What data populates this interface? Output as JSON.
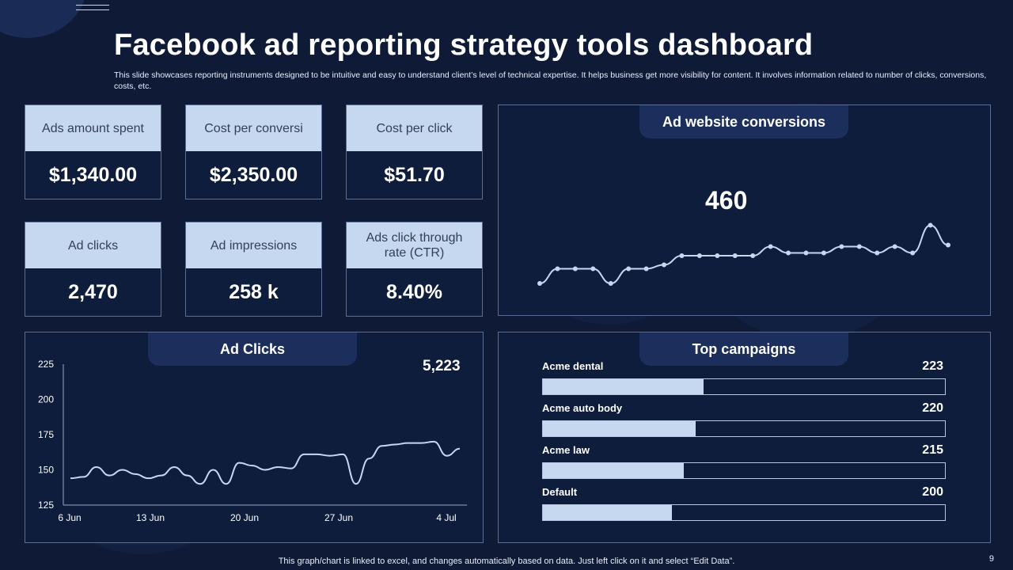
{
  "header": {
    "title": "Facebook ad reporting strategy tools dashboard",
    "subtitle": "This slide showcases reporting instruments designed to be intuitive and easy to understand client’s level of technical expertise. It helps business get more visibility for content. It involves information related to number of clicks, conversions, costs, etc."
  },
  "kpis": [
    {
      "label": "Ads amount  spent",
      "value": "$1,340.00"
    },
    {
      "label": "Cost per conversi",
      "value": "$2,350.00"
    },
    {
      "label": "Cost per click",
      "value": "$51.70"
    },
    {
      "label": "Ad clicks",
      "value": "2,470"
    },
    {
      "label": "Ad impressions",
      "value": "258 k"
    },
    {
      "label": "Ads click through rate (CTR)",
      "value": "8.40%"
    }
  ],
  "conversions": {
    "title": "Ad website conversions",
    "value": "460"
  },
  "clicks": {
    "title": "Ad Clicks",
    "value": "5,223"
  },
  "campaigns": {
    "title": "Top campaigns",
    "items": [
      {
        "name": "Acme dental",
        "value": 223,
        "fraction": 0.4
      },
      {
        "name": "Acme auto body",
        "value": 220,
        "fraction": 0.38
      },
      {
        "name": "Acme law",
        "value": 215,
        "fraction": 0.35
      },
      {
        "name": "Default",
        "value": 200,
        "fraction": 0.32
      }
    ]
  },
  "chart_data": [
    {
      "type": "line",
      "title": "Ad website conversions",
      "x": [
        1,
        2,
        3,
        4,
        5,
        6,
        7,
        8,
        9,
        10,
        11,
        12,
        13,
        14,
        15,
        16,
        17,
        18,
        19,
        20,
        21,
        22,
        23,
        24
      ],
      "values": [
        0.0,
        0.37,
        0.37,
        0.37,
        0.0,
        0.37,
        0.37,
        0.47,
        0.7,
        0.7,
        0.7,
        0.7,
        0.7,
        0.93,
        0.77,
        0.77,
        0.77,
        0.93,
        0.93,
        0.77,
        0.93,
        0.77,
        1.47,
        0.97
      ],
      "ylim": [
        0,
        1.5
      ],
      "grid": false,
      "color": "#c5d8f0"
    },
    {
      "type": "line",
      "title": "Ad Clicks",
      "x": [
        "6 Jun",
        "13 Jun",
        "20 Jun",
        "27 Jun",
        "4 Jul"
      ],
      "x_tick_labels": [
        "6 Jun",
        "13 Jun",
        "20 Jun",
        "27 Jun",
        "4 Jul"
      ],
      "y_tick_labels": [
        "225",
        "200",
        "175",
        "150",
        "125"
      ],
      "ylim": [
        125,
        225
      ],
      "series_points": [
        144,
        145,
        152,
        146,
        150,
        147,
        144,
        146,
        152,
        146,
        140,
        150,
        140,
        155,
        153,
        150,
        152,
        151,
        161,
        161,
        160,
        161,
        140,
        158,
        167,
        168,
        169,
        169,
        170,
        160,
        165
      ],
      "grid": false,
      "color": "#c5d8f0"
    }
  ],
  "footer": {
    "note": "This graph/chart is linked to excel,  and changes automatically based on data. Just left click on it and select “Edit Data”.",
    "page": "9"
  },
  "colors": {
    "background": "#0e1a36",
    "accent": "#c5d8f0",
    "tab": "#1c2f5c"
  }
}
